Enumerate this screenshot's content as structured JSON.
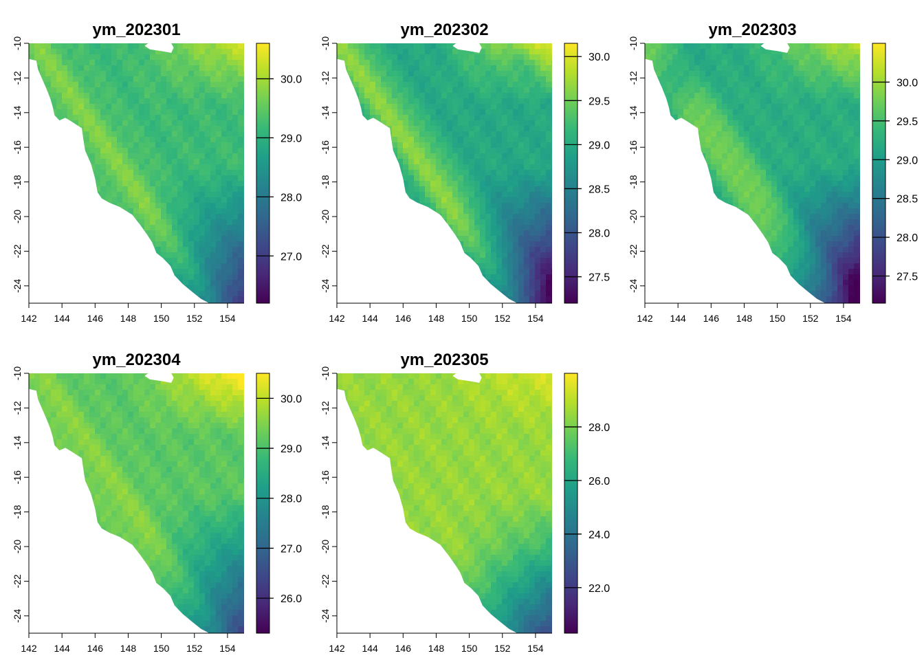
{
  "figure": {
    "x_ticks": [
      142,
      144,
      146,
      148,
      150,
      152,
      154
    ],
    "y_ticks": [
      -10,
      -12,
      -14,
      -16,
      -18,
      -20,
      -22,
      -24
    ],
    "x_range": [
      142,
      155
    ],
    "y_range": [
      -25,
      -10
    ],
    "colormap": [
      "#440154",
      "#482878",
      "#3e4989",
      "#31688e",
      "#26828e",
      "#1f9e89",
      "#35b779",
      "#6ece58",
      "#b5de2b",
      "#fde725"
    ]
  },
  "panels": [
    {
      "title": "ym_202301",
      "value_range": [
        26.2,
        30.6
      ],
      "legend_ticks": [
        {
          "value": 27.0,
          "label": "27.0"
        },
        {
          "value": 28.0,
          "label": "28.0"
        },
        {
          "value": 29.0,
          "label": "29.0"
        },
        {
          "value": 30.0,
          "label": "30.0"
        }
      ]
    },
    {
      "title": "ym_202302",
      "value_range": [
        27.2,
        30.15
      ],
      "legend_ticks": [
        {
          "value": 27.5,
          "label": "27.5"
        },
        {
          "value": 28.0,
          "label": "28.0"
        },
        {
          "value": 28.5,
          "label": "28.5"
        },
        {
          "value": 29.0,
          "label": "29.0"
        },
        {
          "value": 29.5,
          "label": "29.5"
        },
        {
          "value": 30.0,
          "label": "30.0"
        }
      ]
    },
    {
      "title": "ym_202303",
      "value_range": [
        27.15,
        30.5
      ],
      "legend_ticks": [
        {
          "value": 27.5,
          "label": "27.5"
        },
        {
          "value": 28.0,
          "label": "28.0"
        },
        {
          "value": 28.5,
          "label": "28.5"
        },
        {
          "value": 29.0,
          "label": "29.0"
        },
        {
          "value": 29.5,
          "label": "29.5"
        },
        {
          "value": 30.0,
          "label": "30.0"
        }
      ]
    },
    {
      "title": "ym_202304",
      "value_range": [
        25.3,
        30.5
      ],
      "legend_ticks": [
        {
          "value": 26.0,
          "label": "26.0"
        },
        {
          "value": 27.0,
          "label": "27.0"
        },
        {
          "value": 28.0,
          "label": "28.0"
        },
        {
          "value": 29.0,
          "label": "29.0"
        },
        {
          "value": 30.0,
          "label": "30.0"
        }
      ]
    },
    {
      "title": "ym_202305",
      "value_range": [
        20.3,
        30.0
      ],
      "legend_ticks": [
        {
          "value": 22.0,
          "label": "22.0"
        },
        {
          "value": 24.0,
          "label": "24.0"
        },
        {
          "value": 26.0,
          "label": "26.0"
        },
        {
          "value": 28.0,
          "label": "28.0"
        }
      ]
    }
  ]
}
